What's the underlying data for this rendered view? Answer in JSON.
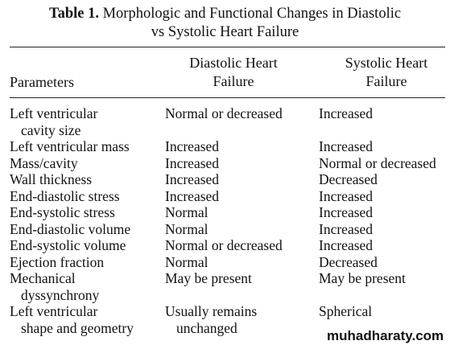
{
  "caption": {
    "label": "Table 1.",
    "text_line1": "Morphologic and Functional Changes in Diastolic",
    "text_line2": "vs Systolic Heart Failure"
  },
  "table": {
    "headers": {
      "parameters": "Parameters",
      "diastolic_line1": "Diastolic Heart",
      "diastolic_line2": "Failure",
      "systolic_line1": "Systolic Heart",
      "systolic_line2": "Failure"
    },
    "rows": [
      {
        "param": [
          "Left ventricular",
          "cavity size"
        ],
        "diastolic": [
          "Normal or decreased"
        ],
        "systolic": [
          "Increased"
        ]
      },
      {
        "param": [
          "Left ventricular mass"
        ],
        "diastolic": [
          "Increased"
        ],
        "systolic": [
          "Increased"
        ]
      },
      {
        "param": [
          "Mass/cavity"
        ],
        "diastolic": [
          "Increased"
        ],
        "systolic": [
          "Normal or decreased"
        ]
      },
      {
        "param": [
          "Wall thickness"
        ],
        "diastolic": [
          "Increased"
        ],
        "systolic": [
          "Decreased"
        ]
      },
      {
        "param": [
          "End-diastolic stress"
        ],
        "diastolic": [
          "Increased"
        ],
        "systolic": [
          "Increased"
        ]
      },
      {
        "param": [
          "End-systolic stress"
        ],
        "diastolic": [
          "Normal"
        ],
        "systolic": [
          "Increased"
        ]
      },
      {
        "param": [
          "End-diastolic volume"
        ],
        "diastolic": [
          "Normal"
        ],
        "systolic": [
          "Increased"
        ]
      },
      {
        "param": [
          "End-systolic volume"
        ],
        "diastolic": [
          "Normal or decreased"
        ],
        "systolic": [
          "Increased"
        ]
      },
      {
        "param": [
          "Ejection fraction"
        ],
        "diastolic": [
          "Normal"
        ],
        "systolic": [
          "Decreased"
        ]
      },
      {
        "param": [
          "Mechanical",
          "dyssynchrony"
        ],
        "diastolic": [
          "May be present"
        ],
        "systolic": [
          "May be present"
        ]
      },
      {
        "param": [
          "Left ventricular",
          "shape and geometry"
        ],
        "diastolic": [
          "Usually remains",
          "unchanged"
        ],
        "systolic": [
          "Spherical"
        ]
      }
    ]
  },
  "watermark": "muhadharaty.com"
}
